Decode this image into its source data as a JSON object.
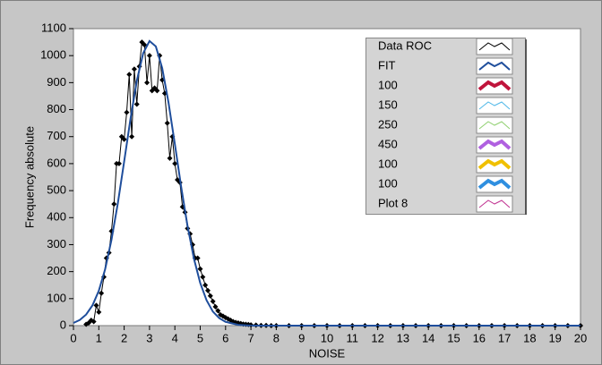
{
  "chart_data": {
    "type": "line",
    "xlabel": "NOISE",
    "ylabel": "Frequency absolute",
    "xlim": [
      0,
      20
    ],
    "ylim": [
      0,
      1100
    ],
    "xticks": [
      0,
      1,
      2,
      3,
      4,
      5,
      6,
      7,
      8,
      9,
      10,
      11,
      12,
      13,
      14,
      15,
      16,
      17,
      18,
      19,
      20
    ],
    "yticks": [
      0,
      100,
      200,
      300,
      400,
      500,
      600,
      700,
      800,
      900,
      1000,
      1100
    ],
    "series": [
      {
        "name": "Data ROC",
        "color": "#000000",
        "line_width": 1,
        "marker": "diamond",
        "x": [
          0.5,
          0.6,
          0.7,
          0.8,
          0.9,
          1.0,
          1.1,
          1.2,
          1.3,
          1.4,
          1.5,
          1.6,
          1.7,
          1.8,
          1.9,
          2.0,
          2.1,
          2.2,
          2.3,
          2.4,
          2.5,
          2.6,
          2.7,
          2.8,
          2.9,
          3.0,
          3.1,
          3.2,
          3.3,
          3.4,
          3.5,
          3.6,
          3.7,
          3.8,
          3.9,
          4.0,
          4.1,
          4.2,
          4.3,
          4.4,
          4.5,
          4.6,
          4.7,
          4.8,
          4.9,
          5.0,
          5.1,
          5.2,
          5.3,
          5.4,
          5.5,
          5.6,
          5.7,
          5.8,
          5.9,
          6.0,
          6.1,
          6.2,
          6.3,
          6.4,
          6.5,
          6.6,
          6.7,
          6.8,
          6.9,
          7.0,
          7.2,
          7.4,
          7.6,
          7.8,
          8.0,
          8.5,
          9.0,
          9.5,
          10.0,
          10.5,
          11.0,
          11.5,
          12.0,
          12.5,
          13.0,
          13.5,
          14.0,
          14.5,
          15.0,
          15.5,
          16.0,
          16.5,
          17.0,
          17.5,
          18.0,
          18.5,
          19.0,
          19.5,
          20.0
        ],
        "values": [
          5,
          10,
          20,
          15,
          75,
          50,
          120,
          180,
          250,
          270,
          350,
          450,
          600,
          600,
          700,
          690,
          790,
          930,
          700,
          950,
          820,
          960,
          1050,
          1040,
          900,
          1000,
          870,
          880,
          870,
          1000,
          910,
          860,
          750,
          620,
          700,
          600,
          540,
          530,
          440,
          420,
          360,
          340,
          300,
          250,
          250,
          210,
          180,
          150,
          130,
          110,
          90,
          70,
          55,
          40,
          35,
          30,
          25,
          20,
          15,
          12,
          10,
          8,
          6,
          5,
          4,
          3,
          2,
          1,
          1,
          0,
          0,
          0,
          0,
          0,
          0,
          0,
          0,
          0,
          0,
          0,
          0,
          0,
          0,
          0,
          0,
          0,
          0,
          0,
          0,
          0,
          0,
          0,
          0,
          0,
          0
        ]
      },
      {
        "name": "FIT",
        "color": "#1f4e9c",
        "line_width": 2,
        "x": [
          0,
          0.25,
          0.5,
          0.75,
          1.0,
          1.25,
          1.5,
          1.75,
          2.0,
          2.25,
          2.5,
          2.75,
          3.0,
          3.25,
          3.5,
          3.75,
          4.0,
          4.25,
          4.5,
          4.75,
          5.0,
          5.25,
          5.5,
          5.75,
          6.0,
          6.5,
          7.0,
          20
        ],
        "values": [
          10,
          21,
          41,
          75,
          129,
          209,
          318,
          453,
          608,
          766,
          907,
          1009,
          1054,
          1034,
          954,
          826,
          672,
          513,
          369,
          249,
          158,
          94,
          52,
          28,
          14,
          3,
          0,
          0
        ]
      },
      {
        "name": "100",
        "color": "#c0143c",
        "line_width": 4
      },
      {
        "name": "150",
        "color": "#4fb8e8",
        "line_width": 1
      },
      {
        "name": "250",
        "color": "#90d070",
        "line_width": 1
      },
      {
        "name": "450",
        "color": "#b060e0",
        "line_width": 4
      },
      {
        "name": "100",
        "color": "#f0c000",
        "line_width": 4
      },
      {
        "name": "100",
        "color": "#2f8fe0",
        "line_width": 4
      },
      {
        "name": "Plot 8",
        "color": "#c03090",
        "line_width": 1
      }
    ]
  }
}
